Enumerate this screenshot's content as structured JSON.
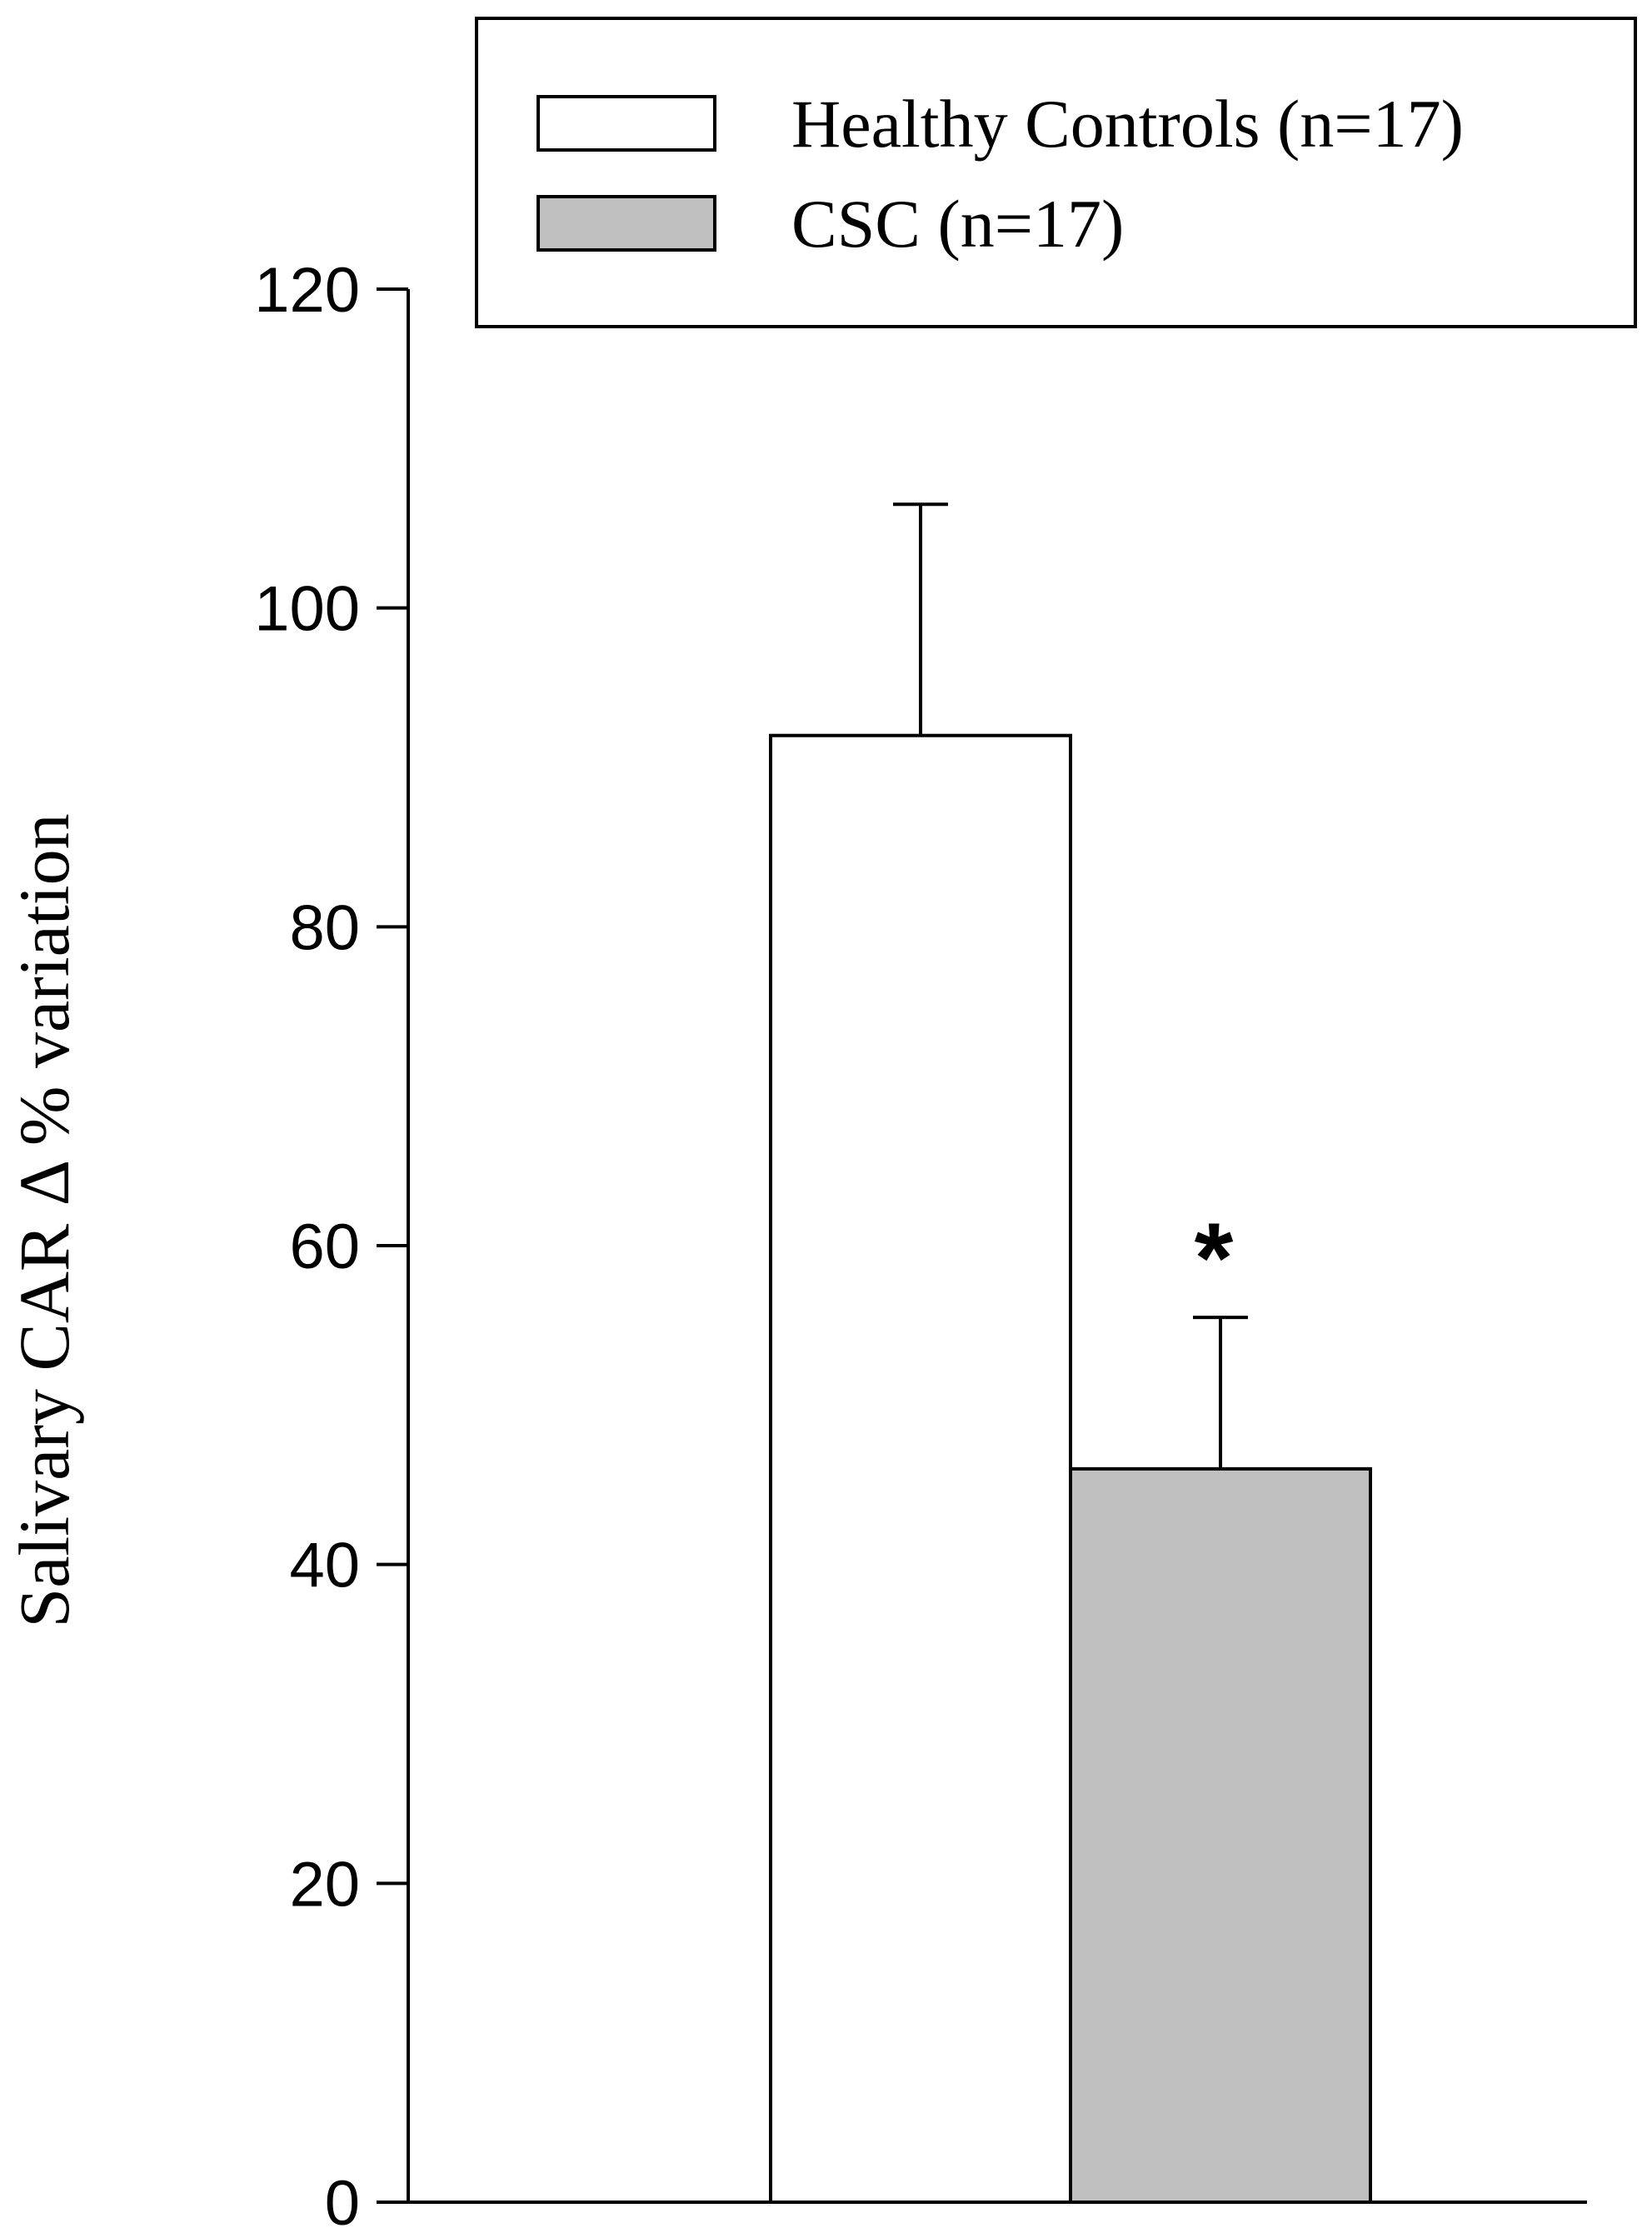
{
  "chart_data": {
    "type": "bar",
    "title": "",
    "xlabel": "",
    "ylabel": "Salivary CAR Δ % variation",
    "ylim": [
      0,
      120
    ],
    "yticks": [
      0,
      20,
      40,
      60,
      80,
      100,
      120
    ],
    "grid": false,
    "legend_position": "top-right",
    "series": [
      {
        "name": "Healthy Controls (n=17)",
        "value": 92,
        "error": 14.5,
        "color": "#ffffff"
      },
      {
        "name": "CSC (n=17)",
        "value": 46,
        "error": 9.5,
        "color": "#c0c0c0"
      }
    ],
    "annotations": [
      {
        "text": "*",
        "series_index": 1
      }
    ]
  }
}
